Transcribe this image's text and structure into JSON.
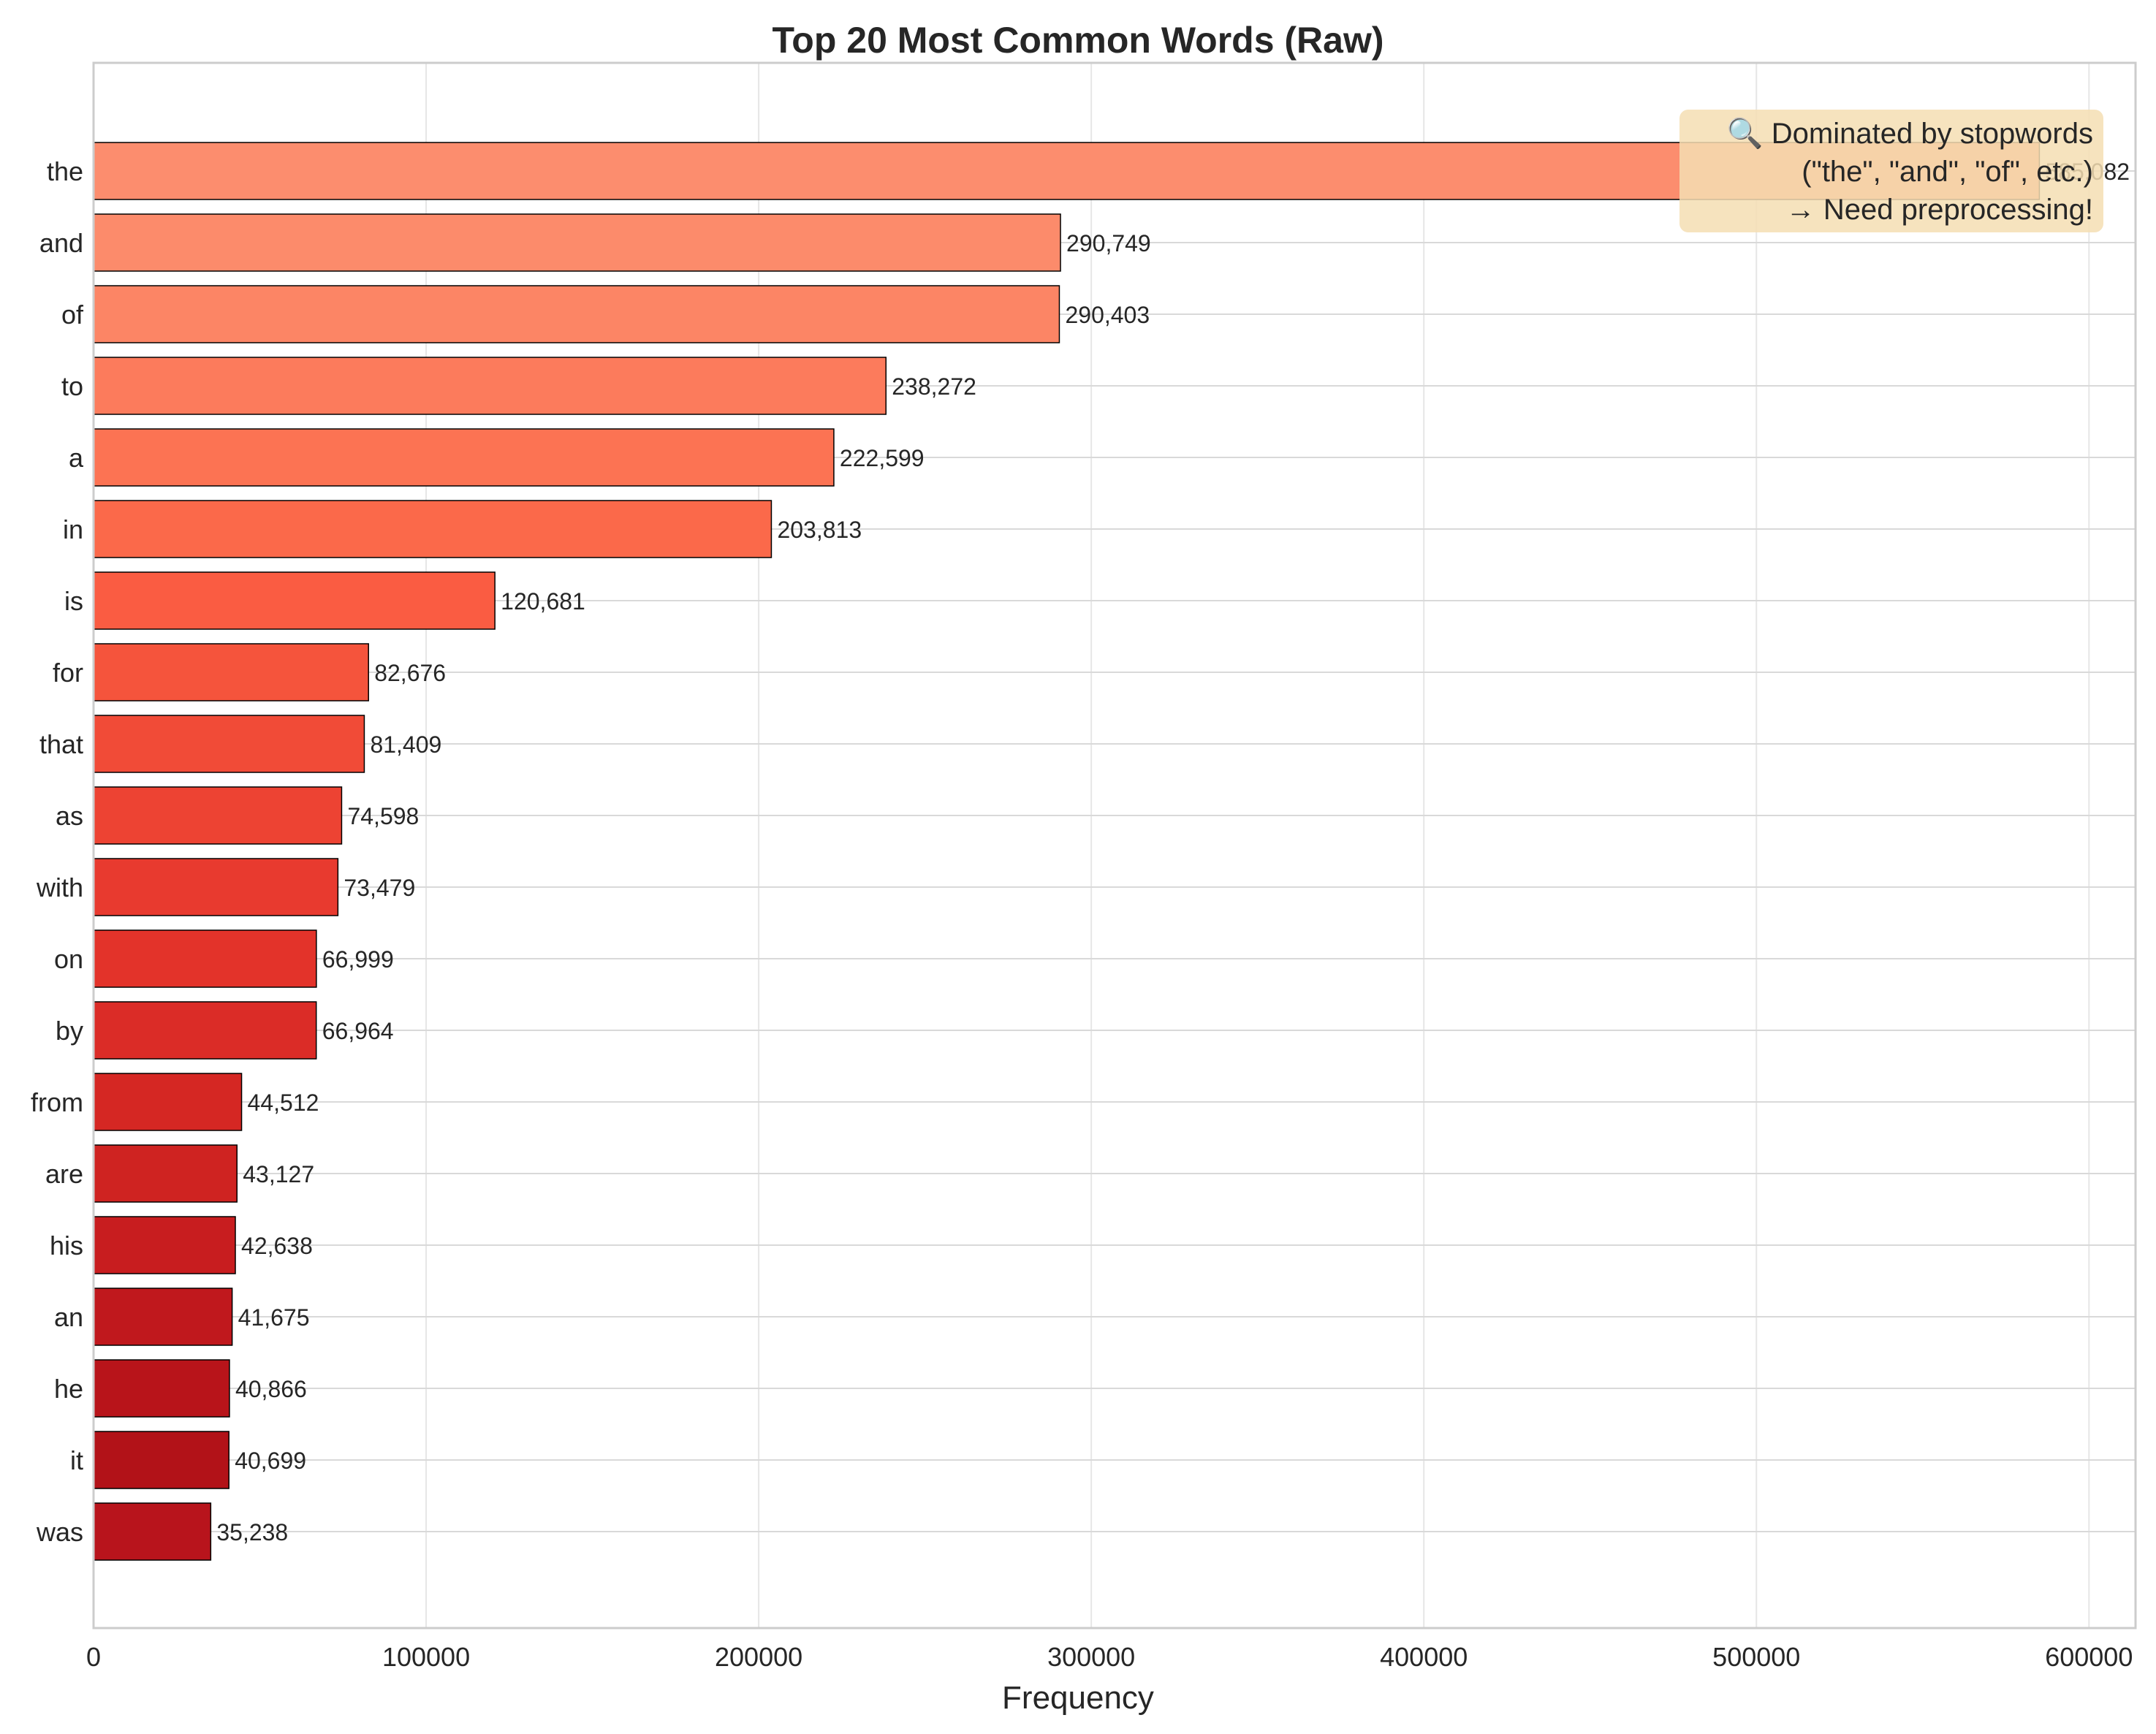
{
  "chart_data": {
    "type": "bar",
    "orientation": "horizontal",
    "title": "Top 20 Most Common Words (Raw)",
    "xlabel": "Frequency",
    "ylabel": "",
    "xlim": [
      0,
      614000
    ],
    "xticks": [
      0,
      100000,
      200000,
      300000,
      400000,
      500000,
      600000
    ],
    "grid": true,
    "categories": [
      "the",
      "and",
      "of",
      "to",
      "a",
      "in",
      "is",
      "for",
      "that",
      "as",
      "with",
      "on",
      "by",
      "from",
      "are",
      "his",
      "an",
      "he",
      "it",
      "was"
    ],
    "values": [
      585082,
      290749,
      290403,
      238272,
      222599,
      203813,
      120681,
      82676,
      81409,
      74598,
      73479,
      66999,
      66964,
      44512,
      43127,
      42638,
      41675,
      40866,
      40699,
      35238
    ],
    "value_labels": [
      "585,082",
      "290,749",
      "290,403",
      "238,272",
      "222,599",
      "203,813",
      "120,681",
      "82,676",
      "81,409",
      "74,598",
      "73,479",
      "66,999",
      "66,964",
      "44,512",
      "43,127",
      "42,638",
      "41,675",
      "40,866",
      "40,699",
      "35,238"
    ],
    "bar_colors": [
      "#fc8d6e",
      "#fc8b6b",
      "#fc8565",
      "#fc7b5c",
      "#fc7353",
      "#fb694a",
      "#fa5c42",
      "#f5543c",
      "#f14b37",
      "#ed4333",
      "#e83a2f",
      "#e3332a",
      "#db2c27",
      "#d52723",
      "#cf2321",
      "#c81d1f",
      "#c0181d",
      "#b8141a",
      "#b21218",
      "#b8141c"
    ],
    "annotation": {
      "lines": [
        "🔍 Dominated by stopwords",
        "(\"the\", \"and\", \"of\", etc.)",
        "→ Need preprocessing!"
      ],
      "background": "#f5deb3",
      "placement": "top-right"
    },
    "legend": "none"
  }
}
